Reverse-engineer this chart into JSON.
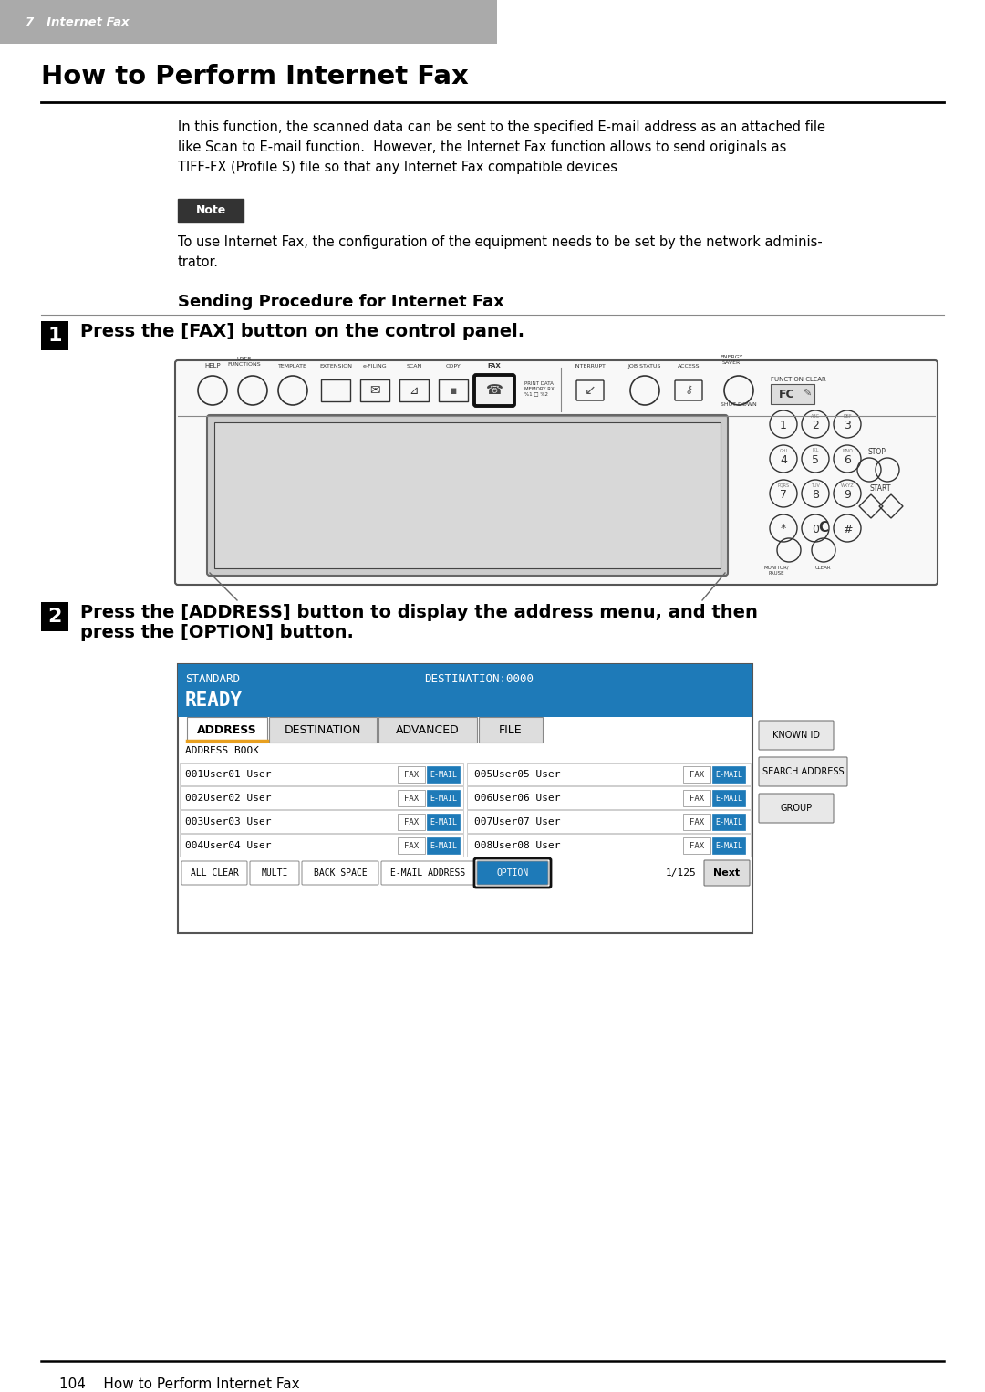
{
  "page_bg": "#ffffff",
  "header_bg": "#aaaaaa",
  "header_text": "7   Internet Fax",
  "header_text_color": "#ffffff",
  "title": "How to Perform Internet Fax",
  "title_color": "#000000",
  "body_text": "In this function, the scanned data can be sent to the specified E-mail address as an attached file\nlike Scan to E-mail function.  However, the Internet Fax function allows to send originals as\nTIFF-FX (Profile S) file so that any Internet Fax compatible devices",
  "note_body": "To use Internet Fax, the configuration of the equipment needs to be set by the network adminis-\ntrator.",
  "section_title": "Sending Procedure for Internet Fax",
  "step1_text": "Press the [FAX] button on the control panel.",
  "step2_text": "Press the [ADDRESS] button to display the address menu, and then\npress the [OPTION] button.",
  "footer_text": "104    How to Perform Internet Fax",
  "screen_header_bg": "#1e7ab8",
  "screen_header_text1": "STANDARD",
  "screen_header_text2": "DESTINATION:0000",
  "screen_ready_text": "READY",
  "address_tab": "ADDRESS",
  "dest_tab": "DESTINATION",
  "adv_tab": "ADVANCED",
  "file_tab": "FILE",
  "addr_book_label": "ADDRESS BOOK",
  "users_left": [
    "001User01 User",
    "002User02 User",
    "003User03 User",
    "004User04 User"
  ],
  "users_right": [
    "005User05 User",
    "006User06 User",
    "007User07 User",
    "008User08 User"
  ],
  "right_buttons": [
    "KNOWN ID",
    "SEARCH ADDRESS",
    "GROUP"
  ],
  "bottom_buttons": [
    "ALL CLEAR",
    "MULTI",
    "BACK SPACE",
    "E-MAIL ADDRESS",
    "OPTION"
  ],
  "page_num": "1/125",
  "next_btn": "Next"
}
